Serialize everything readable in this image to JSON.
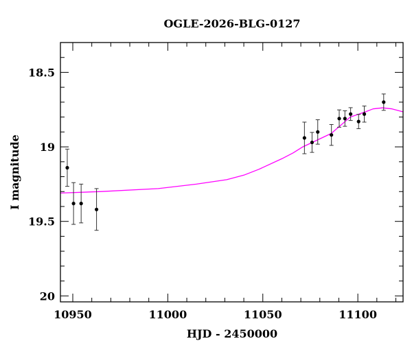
{
  "chart_data": {
    "type": "scatter",
    "title": "OGLE-2026-BLG-0127",
    "xlabel": "HJD - 2450000",
    "ylabel": "I magnitude",
    "xlim": [
      10943.5,
      11123.8
    ],
    "ylim": [
      20.04,
      18.3
    ],
    "y_inverted": true,
    "x_ticks": [
      10950,
      11000,
      11050,
      11100
    ],
    "x_tick_labels": [
      "10950",
      "11000",
      "11050",
      "11100"
    ],
    "y_ticks": [
      18.5,
      19,
      19.5,
      20
    ],
    "y_tick_labels": [
      "18.5",
      "19",
      "19.5",
      "20"
    ],
    "x_minor_step": 10,
    "y_minor_step": 0.1,
    "grid": false,
    "colors": {
      "points": "#000000",
      "model": "#ff00ff"
    },
    "points": [
      {
        "x": 10947.1,
        "y": 19.14,
        "err": 0.125
      },
      {
        "x": 10950.4,
        "y": 19.38,
        "err": 0.14
      },
      {
        "x": 10954.4,
        "y": 19.38,
        "err": 0.13
      },
      {
        "x": 10962.5,
        "y": 19.42,
        "err": 0.14
      },
      {
        "x": 11071.9,
        "y": 18.94,
        "err": 0.106
      },
      {
        "x": 11075.9,
        "y": 18.97,
        "err": 0.067
      },
      {
        "x": 11078.9,
        "y": 18.9,
        "err": 0.082
      },
      {
        "x": 11086.1,
        "y": 18.92,
        "err": 0.07
      },
      {
        "x": 11090.2,
        "y": 18.81,
        "err": 0.058
      },
      {
        "x": 11093.2,
        "y": 18.81,
        "err": 0.052
      },
      {
        "x": 11096.2,
        "y": 18.78,
        "err": 0.043
      },
      {
        "x": 11100.4,
        "y": 18.83,
        "err": 0.048
      },
      {
        "x": 11103.4,
        "y": 18.78,
        "err": 0.054
      },
      {
        "x": 11113.6,
        "y": 18.7,
        "err": 0.055
      }
    ],
    "model_curve": [
      [
        10943.5,
        19.31
      ],
      [
        10965,
        19.3
      ],
      [
        10995,
        19.28
      ],
      [
        11015,
        19.25
      ],
      [
        11031,
        19.22
      ],
      [
        11040,
        19.19
      ],
      [
        11048,
        19.15
      ],
      [
        11060,
        19.08
      ],
      [
        11066,
        19.04
      ],
      [
        11071,
        19.0
      ],
      [
        11076,
        18.97
      ],
      [
        11086,
        18.91
      ],
      [
        11096,
        18.8
      ],
      [
        11104,
        18.765
      ],
      [
        11108,
        18.745
      ],
      [
        11113,
        18.738
      ],
      [
        11118,
        18.745
      ],
      [
        11123.8,
        18.765
      ]
    ]
  }
}
